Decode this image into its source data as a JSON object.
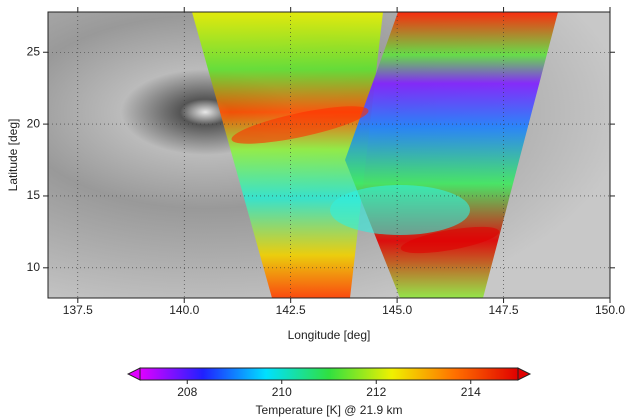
{
  "chart_data": {
    "type": "map",
    "xlabel": "Longitude [deg]",
    "ylabel": "Latitude [deg]",
    "xlim": [
      136.8,
      150.0
    ],
    "ylim": [
      7.9,
      27.8
    ],
    "xticks": [
      137.5,
      {
        "value": 140.0,
        "label": "140.0"
      },
      142.5,
      {
        "value": 145.0,
        "label": "145.0"
      },
      147.5,
      {
        "value": 150.0,
        "label": "150.0"
      }
    ],
    "yticks": [
      10,
      15,
      20,
      25
    ],
    "grid": true,
    "colorbar": {
      "label": "Temperature [K] @ 21.9 km",
      "lim": [
        207,
        215
      ],
      "ticks": [
        208,
        210,
        212,
        214
      ],
      "colormap": [
        "#e000ff",
        "#2020ff",
        "#00e0ff",
        "#30e040",
        "#f0f000",
        "#ff7000",
        "#e00000"
      ]
    }
  }
}
